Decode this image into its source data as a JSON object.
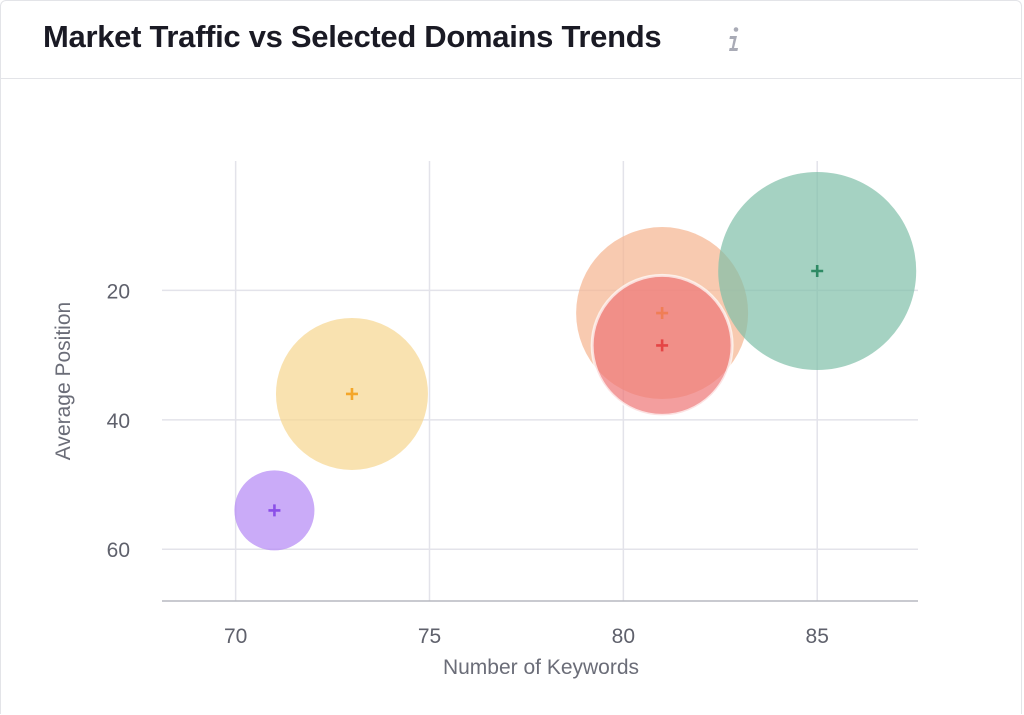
{
  "header": {
    "title": "Market Traffic vs Selected Domains Trends",
    "info_icon": "info-icon"
  },
  "chart_data": {
    "type": "scatter",
    "title": "Market Traffic vs Selected Domains Trends",
    "xlabel": "Number of Keywords",
    "ylabel": "Average Position",
    "xlim": [
      68.1,
      87.6
    ],
    "ylim": [
      0,
      68
    ],
    "y_inverted": true,
    "x_ticks": [
      "70",
      "75",
      "80",
      "85"
    ],
    "y_ticks": [
      "20",
      "40",
      "60"
    ],
    "grid": true,
    "legend": "none",
    "series": [
      {
        "x": 71,
        "y": 54,
        "color": "#b388f5",
        "marker_color": "#8b4fe8"
      },
      {
        "x": 73,
        "y": 36,
        "color": "#f7d58e",
        "marker_color": "#f4a629"
      },
      {
        "x": 81,
        "y": 23.5,
        "color": "#f5b48e",
        "marker_color": "#f07e56"
      },
      {
        "x": 81,
        "y": 28.5,
        "color": "#ee7979",
        "marker_color": "#e54545"
      },
      {
        "x": 85,
        "y": 17,
        "color": "#7fbfa8",
        "marker_color": "#2e8a64"
      }
    ]
  }
}
